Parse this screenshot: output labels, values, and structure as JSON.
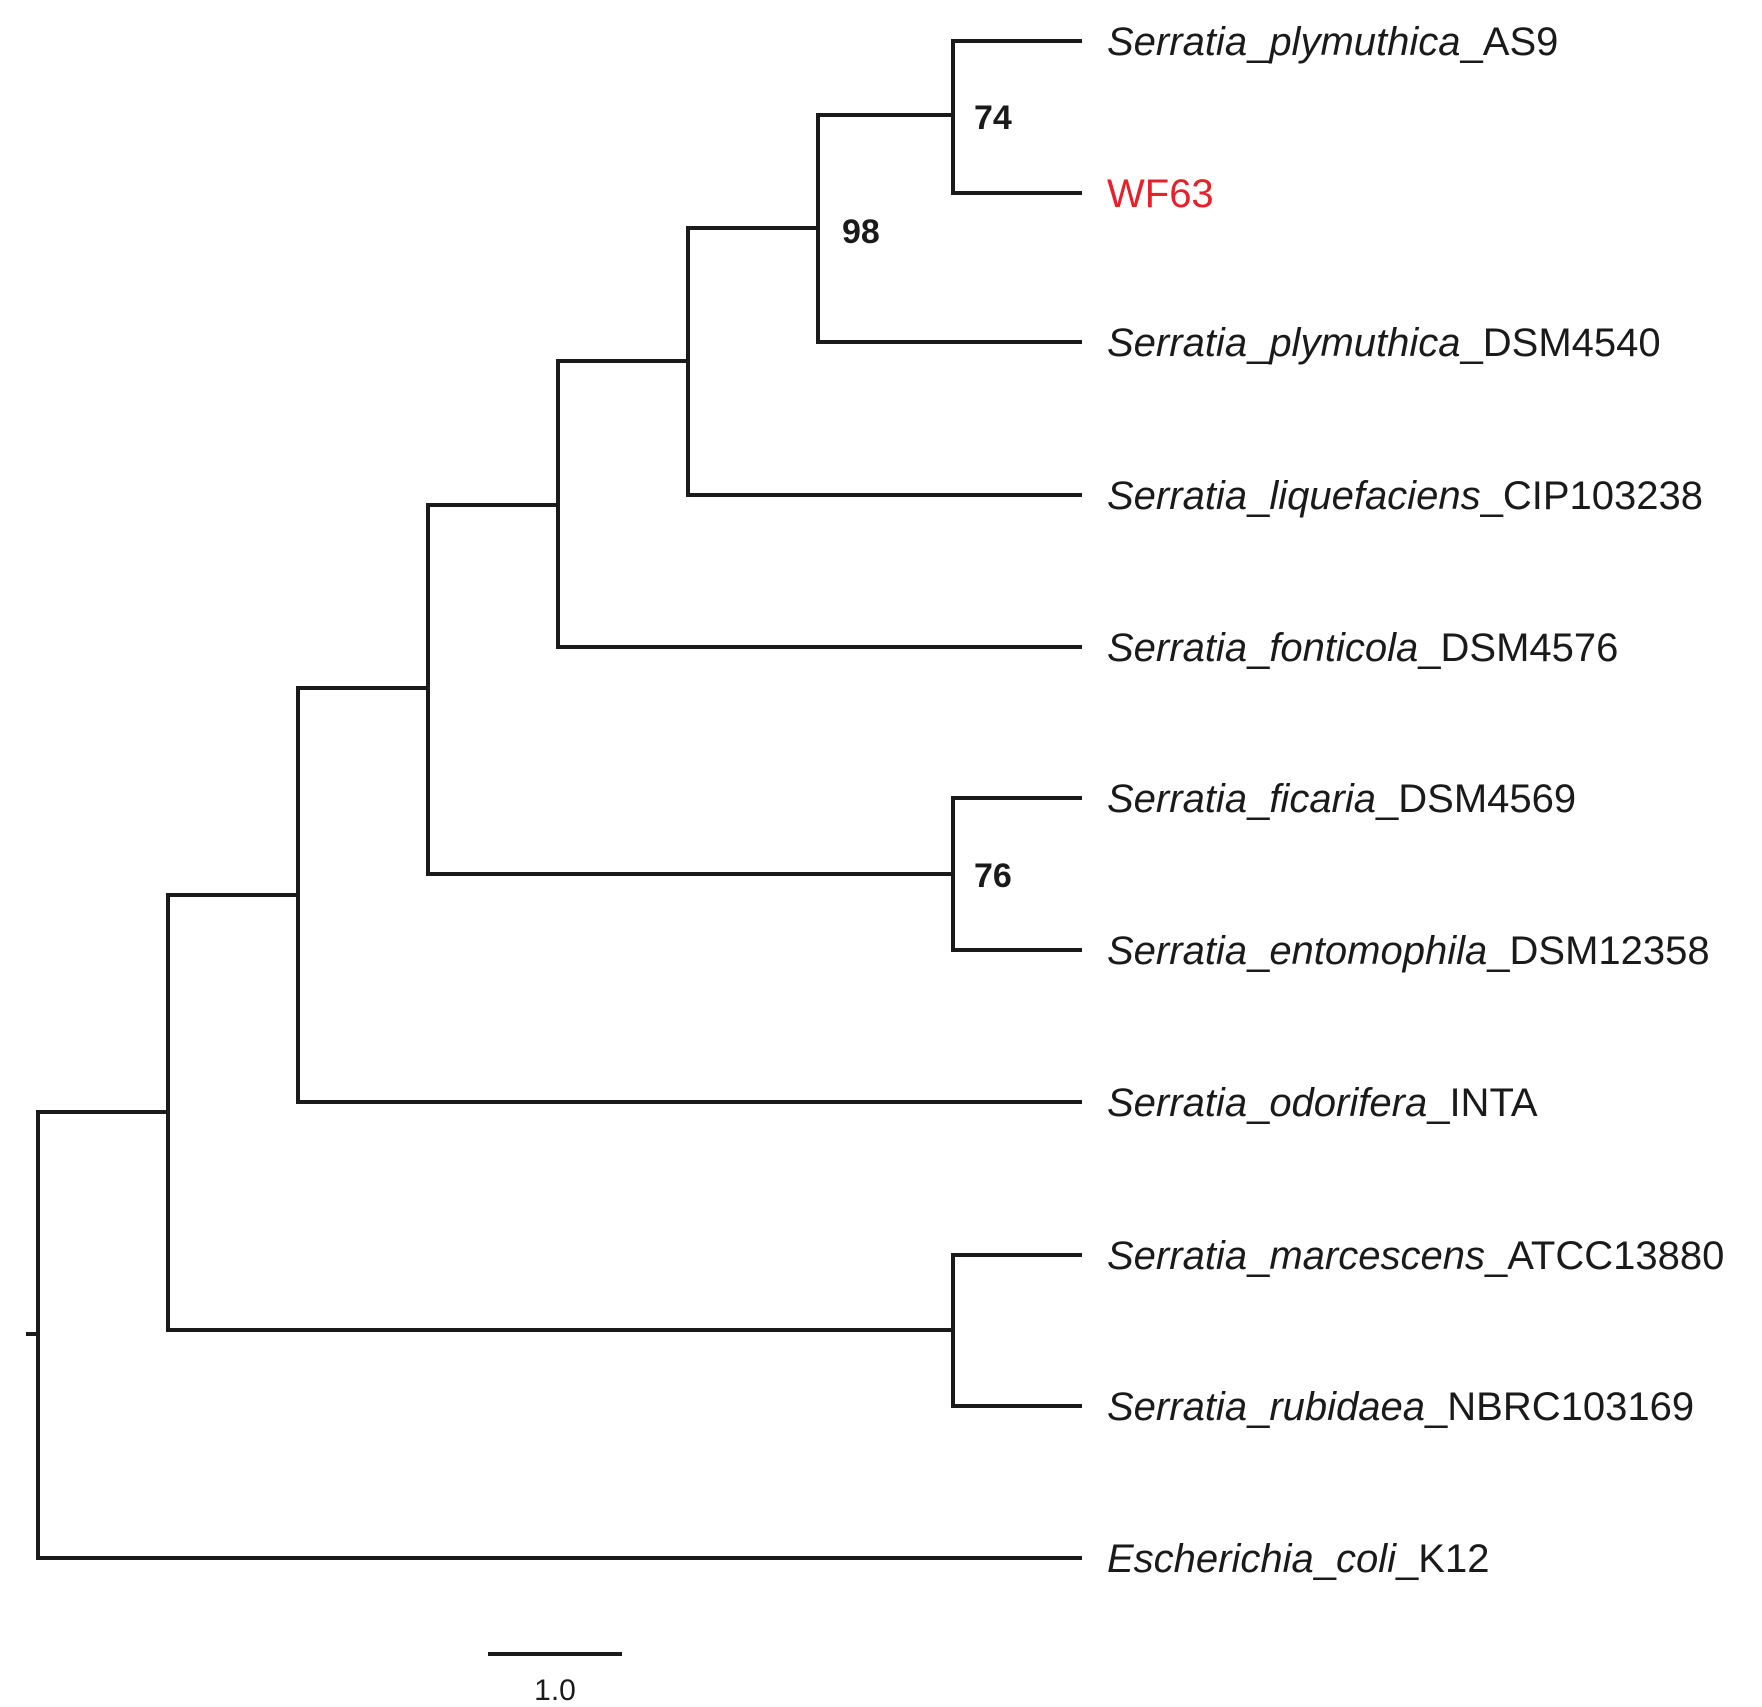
{
  "tree": {
    "taxa": [
      {
        "genus": "Serratia",
        "species": "plymuthica",
        "strain": "AS9"
      },
      {
        "plain": "WF63",
        "highlight": true
      },
      {
        "genus": "Serratia",
        "species": "plymuthica",
        "strain": "DSM4540"
      },
      {
        "genus": "Serratia",
        "species": "liquefaciens",
        "strain": "CIP103238"
      },
      {
        "genus": "Serratia",
        "species": "fonticola",
        "strain": "DSM4576"
      },
      {
        "genus": "Serratia",
        "species": "ficaria",
        "strain": "DSM4569"
      },
      {
        "genus": "Serratia",
        "species": "entomophila",
        "strain": "DSM12358"
      },
      {
        "genus": "Serratia",
        "species": "odorifera",
        "strain": "INTA"
      },
      {
        "genus": "Serratia",
        "species": "marcescens",
        "strain": "ATCC13880"
      },
      {
        "genus": "Serratia",
        "species": "rubidaea",
        "strain": "NBRC103169"
      },
      {
        "genus": "Escherichia",
        "species": "coli",
        "strain": "K12"
      }
    ],
    "support_values": [
      "74",
      "98",
      "76"
    ],
    "highlight_color": "#e8202a",
    "scale_bar": {
      "value": 1.0,
      "label": "1.0"
    }
  }
}
